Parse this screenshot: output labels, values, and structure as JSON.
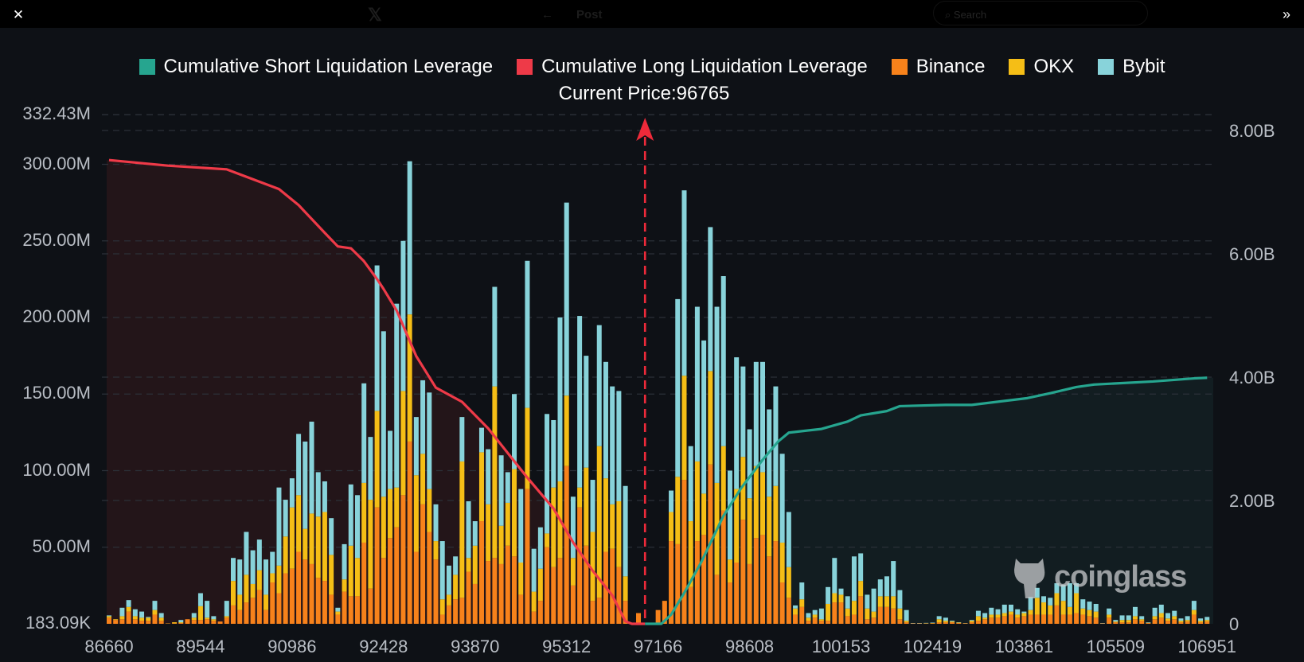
{
  "topbar": {
    "close_icon": "close-icon",
    "x_logo": "𝕏",
    "back_icon": "←",
    "post_title": "Post",
    "search_placeholder": "Search",
    "expand_icon": "»"
  },
  "colors": {
    "short": "#26a58f",
    "long": "#ee3a48",
    "binance": "#f7821b",
    "okx": "#f5be16",
    "bybit": "#88d3da",
    "long_fill": "#231519",
    "short_fill": "#121d21",
    "grid": "#2b3038"
  },
  "watermark": "coinglass",
  "chart_data": {
    "type": "bar",
    "subtype": "stacked bar with cumulative lines (dual axis)",
    "title": "Current Price:96765",
    "current_price_index": 82,
    "legend": [
      "Cumulative Short Liquidation Leverage",
      "Cumulative Long Liquidation Leverage",
      "Binance",
      "OKX",
      "Bybit"
    ],
    "legend_position": "top-center",
    "x_tick_labels": [
      "86660",
      "89544",
      "90986",
      "92428",
      "93870",
      "95312",
      "97166",
      "98608",
      "100153",
      "102419",
      "103861",
      "105509",
      "106951"
    ],
    "x_tick_every": 14,
    "bar_count": 169,
    "y_left": {
      "unit": "USD",
      "ylim": [
        0.18309,
        332.43
      ],
      "tick_values": [
        0.18309,
        50,
        100,
        150,
        200,
        250,
        300,
        332.43
      ],
      "tick_labels": [
        "183.09K",
        "50.00M",
        "100.00M",
        "150.00M",
        "200.00M",
        "250.00M",
        "300.00M",
        "332.43M"
      ]
    },
    "y_right": {
      "unit": "USD (B)",
      "ylim": [
        0,
        8
      ],
      "tick_values": [
        0,
        2,
        4,
        6,
        8
      ],
      "tick_labels": [
        "0",
        "2.00B",
        "4.00B",
        "6.00B",
        "8.00B"
      ]
    },
    "grid": true,
    "bars_M_binance_okx_bybit": [
      [
        4,
        1,
        0.5
      ],
      [
        2.5,
        0.5,
        0
      ],
      [
        3,
        2,
        5.5
      ],
      [
        8,
        3,
        4.5
      ],
      [
        3,
        2,
        4.5
      ],
      [
        2,
        2,
        4
      ],
      [
        2,
        2,
        0.5
      ],
      [
        6,
        3,
        6
      ],
      [
        2,
        2,
        3
      ],
      [
        0.2,
        0.1,
        0
      ],
      [
        0.3,
        0.7,
        0
      ],
      [
        0.5,
        0.5,
        1.5
      ],
      [
        3,
        0,
        0
      ],
      [
        2.5,
        1.5,
        3
      ],
      [
        2.5,
        9,
        8.5
      ],
      [
        3,
        1,
        11
      ],
      [
        2,
        1,
        2
      ],
      [
        1.5,
        0,
        0
      ],
      [
        4,
        1,
        10
      ],
      [
        12,
        16,
        15
      ],
      [
        9,
        10,
        23
      ],
      [
        14,
        18,
        28
      ],
      [
        17,
        9,
        22
      ],
      [
        22,
        13,
        20
      ],
      [
        9,
        10,
        23
      ],
      [
        27,
        6,
        14
      ],
      [
        20,
        18,
        51
      ],
      [
        33,
        24,
        24
      ],
      [
        36,
        40,
        19
      ],
      [
        47,
        37,
        40
      ],
      [
        42,
        20,
        57
      ],
      [
        39,
        33,
        60
      ],
      [
        30,
        40,
        29
      ],
      [
        28,
        45,
        20
      ],
      [
        19,
        26,
        24
      ],
      [
        6,
        2,
        2.5
      ],
      [
        21,
        8,
        23
      ],
      [
        18,
        33,
        40
      ],
      [
        18,
        25,
        41
      ],
      [
        53,
        39,
        65
      ],
      [
        23,
        58,
        41
      ],
      [
        76,
        63,
        95
      ],
      [
        43,
        40,
        108
      ],
      [
        56,
        32,
        38
      ],
      [
        63,
        26,
        120
      ],
      [
        84,
        68,
        98
      ],
      [
        119,
        83,
        100
      ],
      [
        47,
        50,
        38
      ],
      [
        78,
        33,
        48
      ],
      [
        60,
        28,
        63
      ],
      [
        42,
        12,
        24
      ],
      [
        6,
        10,
        38
      ],
      [
        12,
        7,
        19
      ],
      [
        16,
        16,
        12
      ],
      [
        17,
        89,
        29
      ],
      [
        34,
        9,
        37
      ],
      [
        26,
        25,
        16
      ],
      [
        67,
        45,
        16
      ],
      [
        41,
        37,
        36
      ],
      [
        43,
        112,
        65
      ],
      [
        39,
        25,
        46
      ],
      [
        51,
        28,
        20
      ],
      [
        44,
        57,
        49
      ],
      [
        19,
        21,
        48
      ],
      [
        88,
        53,
        96
      ],
      [
        8,
        13,
        28
      ],
      [
        15,
        21,
        27
      ],
      [
        50,
        9,
        78
      ],
      [
        37,
        52,
        44
      ],
      [
        43,
        50,
        107
      ],
      [
        103,
        46,
        126
      ],
      [
        25,
        18,
        40
      ],
      [
        76,
        13,
        112
      ],
      [
        51,
        51,
        73
      ],
      [
        15,
        45,
        34
      ],
      [
        17,
        99,
        79
      ],
      [
        47,
        48,
        76
      ],
      [
        49,
        29,
        77
      ],
      [
        37,
        43,
        72
      ],
      [
        15,
        16,
        59
      ],
      [
        0.3,
        0,
        0
      ],
      [
        7,
        0,
        0
      ],
      [
        0,
        0,
        0
      ],
      [
        0,
        0,
        0
      ],
      [
        9,
        0,
        0
      ],
      [
        15,
        0,
        0
      ],
      [
        54,
        19,
        14
      ],
      [
        52,
        44,
        116
      ],
      [
        94,
        68,
        121
      ],
      [
        24,
        43,
        49
      ],
      [
        54,
        52,
        101
      ],
      [
        58,
        27,
        100
      ],
      [
        104,
        61,
        94
      ],
      [
        32,
        60,
        115
      ],
      [
        74,
        42,
        111
      ],
      [
        27,
        15,
        58
      ],
      [
        40,
        48,
        86
      ],
      [
        68,
        41,
        59
      ],
      [
        39,
        43,
        45
      ],
      [
        56,
        47,
        68
      ],
      [
        58,
        41,
        72
      ],
      [
        44,
        39,
        57
      ],
      [
        54,
        36,
        65
      ],
      [
        27,
        26,
        58
      ],
      [
        17,
        20,
        36
      ],
      [
        6,
        4,
        2
      ],
      [
        11,
        5,
        11
      ],
      [
        2,
        2,
        3
      ],
      [
        4,
        2,
        3
      ],
      [
        2,
        1,
        7
      ],
      [
        2,
        11,
        11
      ],
      [
        14,
        6,
        23
      ],
      [
        14,
        5,
        4
      ],
      [
        5,
        5,
        8
      ],
      [
        6,
        9,
        29
      ],
      [
        18,
        10,
        18
      ],
      [
        3,
        7,
        9
      ],
      [
        4,
        4,
        15
      ],
      [
        11,
        7,
        11
      ],
      [
        11,
        7,
        13
      ],
      [
        10,
        8,
        23
      ],
      [
        3,
        7,
        12
      ],
      [
        1,
        1,
        7
      ],
      [
        0.3,
        0,
        0.2
      ],
      [
        0.3,
        0,
        0.2
      ],
      [
        0.2,
        0.2,
        0.2
      ],
      [
        0.3,
        0.2,
        0.3
      ],
      [
        1,
        2,
        2
      ],
      [
        1,
        1,
        2
      ],
      [
        1,
        0.5,
        0.5
      ],
      [
        0.5,
        0.3,
        0.2
      ],
      [
        0.3,
        0.1,
        0.1
      ],
      [
        1,
        1,
        0.5
      ],
      [
        2,
        3,
        3.5
      ],
      [
        3,
        1,
        3
      ],
      [
        4,
        2,
        4.5
      ],
      [
        4,
        2,
        3.5
      ],
      [
        5,
        2,
        5.5
      ],
      [
        6,
        2,
        4.5
      ],
      [
        4,
        2,
        3.5
      ],
      [
        5,
        2,
        1
      ],
      [
        6,
        3,
        8.5
      ],
      [
        6,
        11,
        6.5
      ],
      [
        6,
        8,
        4
      ],
      [
        6,
        6,
        5
      ],
      [
        12,
        8,
        6.5
      ],
      [
        6,
        9,
        10.5
      ],
      [
        6,
        5,
        15.5
      ],
      [
        7,
        13,
        6.5
      ],
      [
        6,
        4,
        6
      ],
      [
        5,
        4,
        5.5
      ],
      [
        4,
        4,
        5
      ],
      [
        0.3,
        0,
        0.2
      ],
      [
        4,
        2,
        4
      ],
      [
        1,
        0.5,
        1
      ],
      [
        1,
        1.5,
        3
      ],
      [
        1,
        1.5,
        3
      ],
      [
        3,
        2,
        6
      ],
      [
        2,
        1,
        2
      ],
      [
        0.5,
        0.2,
        0.3
      ],
      [
        3,
        2,
        5.5
      ],
      [
        4,
        3,
        5.5
      ],
      [
        2,
        1.5,
        3.5
      ],
      [
        3,
        2,
        3.5
      ],
      [
        1,
        1,
        1.5
      ],
      [
        1.5,
        1,
        2.5
      ],
      [
        6,
        3,
        6
      ],
      [
        1,
        1,
        1.5
      ],
      [
        1.5,
        1,
        2
      ]
    ],
    "cumulative_long_B_points": [
      [
        0,
        7.52
      ],
      [
        9,
        7.43
      ],
      [
        18,
        7.37
      ],
      [
        26,
        7.05
      ],
      [
        29,
        6.79
      ],
      [
        33,
        6.34
      ],
      [
        35,
        6.12
      ],
      [
        37,
        6.09
      ],
      [
        39,
        5.88
      ],
      [
        41,
        5.59
      ],
      [
        42,
        5.43
      ],
      [
        44,
        5.08
      ],
      [
        47,
        4.34
      ],
      [
        50,
        3.83
      ],
      [
        54,
        3.6
      ],
      [
        58,
        3.17
      ],
      [
        61,
        2.77
      ],
      [
        64,
        2.37
      ],
      [
        66,
        2.12
      ],
      [
        68,
        1.87
      ],
      [
        71,
        1.32
      ],
      [
        74,
        0.86
      ],
      [
        77,
        0.46
      ],
      [
        79,
        0.04
      ],
      [
        80,
        0
      ],
      [
        82,
        0
      ]
    ],
    "cumulative_short_B_points": [
      [
        82,
        0
      ],
      [
        84.5,
        0
      ],
      [
        86,
        0.15
      ],
      [
        88,
        0.5
      ],
      [
        90.6,
        1.0
      ],
      [
        94,
        1.75
      ],
      [
        96.7,
        2.2
      ],
      [
        100,
        2.66
      ],
      [
        102.4,
        2.96
      ],
      [
        104,
        3.1
      ],
      [
        109,
        3.16
      ],
      [
        113,
        3.28
      ],
      [
        115,
        3.38
      ],
      [
        119,
        3.45
      ],
      [
        121,
        3.53
      ],
      [
        128,
        3.55
      ],
      [
        132,
        3.55
      ],
      [
        140.5,
        3.66
      ],
      [
        144,
        3.74
      ],
      [
        148,
        3.84
      ],
      [
        150.7,
        3.88
      ],
      [
        159.7,
        3.93
      ],
      [
        166,
        3.98
      ],
      [
        168,
        3.99
      ]
    ]
  }
}
